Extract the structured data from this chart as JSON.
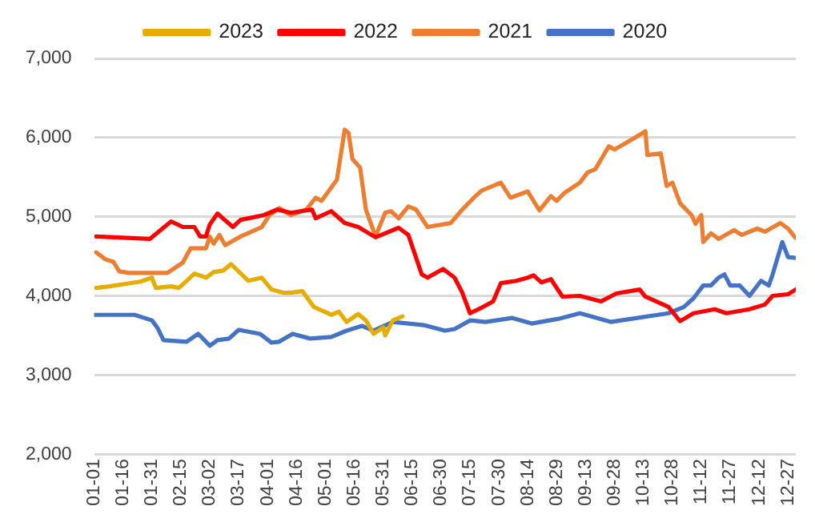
{
  "chart_data": {
    "type": "line",
    "legend": "top",
    "grid": "y",
    "marker": "none",
    "ylim": [
      2000,
      7000
    ],
    "yticks": [
      {
        "value": 2000,
        "label": "2,000"
      },
      {
        "value": 3000,
        "label": "3,000"
      },
      {
        "value": 4000,
        "label": "4,000"
      },
      {
        "value": 5000,
        "label": "5,000"
      },
      {
        "value": 6000,
        "label": "6,000"
      },
      {
        "value": 7000,
        "label": "7,000"
      }
    ],
    "xlim": [
      "--01-01",
      "--12-31"
    ],
    "xticks": [
      {
        "value": "--01-01",
        "label": "01-01"
      },
      {
        "value": "--01-16",
        "label": "01-16"
      },
      {
        "value": "--01-31",
        "label": "01-31"
      },
      {
        "value": "--02-15",
        "label": "02-15"
      },
      {
        "value": "--03-02",
        "label": "03-02"
      },
      {
        "value": "--03-17",
        "label": "03-17"
      },
      {
        "value": "--04-01",
        "label": "04-01"
      },
      {
        "value": "--04-16",
        "label": "04-16"
      },
      {
        "value": "--05-01",
        "label": "05-01"
      },
      {
        "value": "--05-16",
        "label": "05-16"
      },
      {
        "value": "--05-31",
        "label": "05-31"
      },
      {
        "value": "--06-15",
        "label": "06-15"
      },
      {
        "value": "--06-30",
        "label": "06-30"
      },
      {
        "value": "--07-15",
        "label": "07-15"
      },
      {
        "value": "--07-30",
        "label": "07-30"
      },
      {
        "value": "--08-14",
        "label": "08-14"
      },
      {
        "value": "--08-29",
        "label": "08-29"
      },
      {
        "value": "--09-13",
        "label": "09-13"
      },
      {
        "value": "--09-28",
        "label": "09-28"
      },
      {
        "value": "--10-13",
        "label": "10-13"
      },
      {
        "value": "--10-28",
        "label": "10-28"
      },
      {
        "value": "--11-12",
        "label": "11-12"
      },
      {
        "value": "--11-27",
        "label": "11-27"
      },
      {
        "value": "--12-12",
        "label": "12-12"
      },
      {
        "value": "--12-27",
        "label": "12-27"
      }
    ],
    "series": [
      {
        "name": "2023",
        "color": "#e6ad00",
        "x": [
          "--01-02",
          "--01-09",
          "--01-25",
          "--01-31",
          "--02-02",
          "--02-10",
          "--02-14",
          "--02-22",
          "--02-28",
          "--03-04",
          "--03-09",
          "--03-13",
          "--03-22",
          "--03-29",
          "--04-03",
          "--04-09",
          "--04-13",
          "--04-19",
          "--04-25",
          "--05-04",
          "--05-08",
          "--05-12",
          "--05-18",
          "--05-22",
          "--05-26",
          "--05-31",
          "--06-01",
          "--06-05",
          "--06-10"
        ],
        "values": [
          4100,
          4120,
          4180,
          4230,
          4100,
          4120,
          4100,
          4280,
          4230,
          4300,
          4320,
          4400,
          4190,
          4230,
          4080,
          4040,
          4040,
          4060,
          3860,
          3760,
          3800,
          3670,
          3770,
          3690,
          3520,
          3600,
          3500,
          3690,
          3740
        ]
      },
      {
        "name": "2022",
        "color": "#ff0000",
        "x": [
          "--01-02",
          "--01-30",
          "--02-10",
          "--02-16",
          "--02-22",
          "--02-25",
          "--02-28",
          "--03-02",
          "--03-06",
          "--03-14",
          "--03-18",
          "--03-30",
          "--04-06",
          "--04-13",
          "--04-24",
          "--04-26",
          "--05-04",
          "--05-11",
          "--05-18",
          "--05-27",
          "--06-08",
          "--06-13",
          "--06-20",
          "--06-23",
          "--07-01",
          "--07-07",
          "--07-11",
          "--07-15",
          "--07-21",
          "--07-27",
          "--07-31",
          "--08-08",
          "--08-14",
          "--08-17",
          "--08-21",
          "--08-26",
          "--09-01",
          "--09-10",
          "--09-21",
          "--09-29",
          "--10-11",
          "--10-14",
          "--10-26",
          "--11-01",
          "--11-08",
          "--11-19",
          "--11-25",
          "--12-07",
          "--12-15",
          "--12-19",
          "--12-27",
          "--12-31"
        ],
        "values": [
          4750,
          4720,
          4940,
          4870,
          4870,
          4750,
          4750,
          4900,
          5040,
          4870,
          4960,
          5020,
          5090,
          5050,
          5090,
          4980,
          5070,
          4920,
          4870,
          4740,
          4860,
          4770,
          4270,
          4230,
          4340,
          4230,
          4040,
          3780,
          3850,
          3930,
          4160,
          4190,
          4230,
          4260,
          4170,
          4210,
          3990,
          4000,
          3930,
          4030,
          4080,
          3990,
          3860,
          3680,
          3780,
          3830,
          3780,
          3830,
          3890,
          4000,
          4020,
          4080
        ]
      },
      {
        "name": "2021",
        "color": "#ed7d31",
        "x": [
          "--01-02",
          "--01-07",
          "--01-11",
          "--01-14",
          "--01-19",
          "--02-08",
          "--02-16",
          "--02-20",
          "--02-28",
          "--03-02",
          "--03-04",
          "--03-07",
          "--03-10",
          "--03-18",
          "--03-29",
          "--04-02",
          "--04-07",
          "--04-13",
          "--04-21",
          "--04-26",
          "--04-29",
          "--05-07",
          "--05-11",
          "--05-13",
          "--05-15",
          "--05-19",
          "--05-22",
          "--05-27",
          "--06-01",
          "--06-04",
          "--06-08",
          "--06-13",
          "--06-17",
          "--06-23",
          "--07-05",
          "--07-11",
          "--07-17",
          "--07-21",
          "--07-27",
          "--07-31",
          "--08-05",
          "--08-14",
          "--08-20",
          "--08-26",
          "--08-29",
          "--09-02",
          "--09-10",
          "--09-14",
          "--09-18",
          "--09-25",
          "--09-28",
          "--10-08",
          "--10-14",
          "--10-15",
          "--10-22",
          "--10-25",
          "--10-28",
          "--11-01",
          "--11-07",
          "--11-09",
          "--11-12",
          "--11-13",
          "--11-17",
          "--11-21",
          "--11-29",
          "--12-03",
          "--12-11",
          "--12-15",
          "--12-23",
          "--12-27",
          "--12-31"
        ],
        "values": [
          4550,
          4460,
          4430,
          4310,
          4290,
          4290,
          4420,
          4600,
          4600,
          4750,
          4660,
          4770,
          4640,
          4750,
          4870,
          5020,
          5110,
          5020,
          5090,
          5240,
          5200,
          5470,
          6100,
          6060,
          5730,
          5620,
          5090,
          4750,
          5050,
          5070,
          4980,
          5130,
          5090,
          4870,
          4920,
          5090,
          5240,
          5330,
          5390,
          5430,
          5240,
          5320,
          5080,
          5260,
          5200,
          5300,
          5430,
          5560,
          5600,
          5890,
          5850,
          5990,
          6080,
          5780,
          5800,
          5390,
          5430,
          5170,
          5020,
          4910,
          5020,
          4680,
          4790,
          4720,
          4830,
          4770,
          4850,
          4810,
          4920,
          4850,
          4730
        ]
      },
      {
        "name": "2020",
        "color": "#4472c4",
        "x": [
          "--01-01",
          "--01-22",
          "--01-31",
          "--02-03",
          "--02-06",
          "--02-18",
          "--02-24",
          "--03-02",
          "--03-06",
          "--03-12",
          "--03-17",
          "--03-28",
          "--04-03",
          "--04-07",
          "--04-14",
          "--04-23",
          "--05-04",
          "--05-12",
          "--05-20",
          "--05-26",
          "--06-05",
          "--06-21",
          "--07-02",
          "--07-07",
          "--07-15",
          "--07-23",
          "--08-06",
          "--08-16",
          "--08-30",
          "--09-10",
          "--09-26",
          "--10-07",
          "--10-26",
          "--11-03",
          "--11-08",
          "--11-13",
          "--11-17",
          "--11-21",
          "--11-24",
          "--11-27",
          "--12-02",
          "--12-07",
          "--12-13",
          "--12-17",
          "--12-19",
          "--12-24",
          "--12-27",
          "--12-31"
        ],
        "values": [
          3760,
          3760,
          3690,
          3590,
          3440,
          3420,
          3520,
          3370,
          3440,
          3460,
          3570,
          3520,
          3410,
          3420,
          3520,
          3460,
          3480,
          3560,
          3620,
          3560,
          3670,
          3630,
          3560,
          3580,
          3690,
          3670,
          3720,
          3650,
          3710,
          3780,
          3670,
          3710,
          3780,
          3860,
          3970,
          4130,
          4130,
          4230,
          4270,
          4130,
          4130,
          4000,
          4190,
          4130,
          4270,
          4680,
          4490,
          4480
        ]
      }
    ]
  }
}
